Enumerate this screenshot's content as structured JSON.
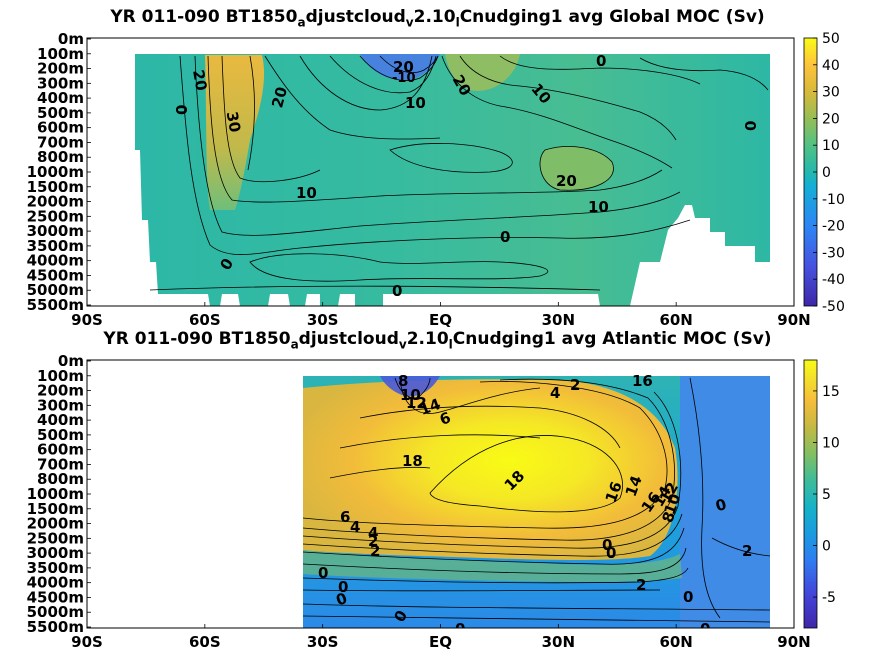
{
  "chart_data": [
    {
      "type": "heatmap",
      "title": {
        "prefix": "YR 011-090 BT1850",
        "sub1": "a",
        "mid1": "djustcloud",
        "sub2": "v",
        "mid2": "2.10",
        "sub3": "l",
        "suffix": "Cnudging1 avg  Global MOC (Sv)"
      },
      "x_ticks": [
        "90S",
        "60S",
        "30S",
        "EQ",
        "30N",
        "60N",
        "90N"
      ],
      "y_ticks": [
        "0m",
        "100m",
        "200m",
        "300m",
        "400m",
        "500m",
        "600m",
        "700m",
        "800m",
        "1000m",
        "1500m",
        "2000m",
        "2500m",
        "3000m",
        "3500m",
        "4000m",
        "4500m",
        "5000m",
        "5500m"
      ],
      "xlim": [
        -90,
        90
      ],
      "colorbar": {
        "ticks": [
          "50",
          "40",
          "30",
          "20",
          "10",
          "0",
          "-10",
          "-20",
          "-30",
          "-40",
          "-50"
        ],
        "range": [
          -50,
          50
        ]
      },
      "contour_labels": [
        "20",
        "-10",
        "20",
        "10",
        "20",
        "0",
        "0",
        "30",
        "20",
        "10",
        "10",
        "0",
        "20",
        "10",
        "0",
        "0",
        "0"
      ]
    },
    {
      "type": "heatmap",
      "title": {
        "prefix": "YR 011-090 BT1850",
        "sub1": "a",
        "mid1": "djustcloud",
        "sub2": "v",
        "mid2": "2.10",
        "sub3": "l",
        "suffix": "Cnudging1 avg  Atlantic MOC (Sv)"
      },
      "x_ticks": [
        "90S",
        "60S",
        "30S",
        "EQ",
        "30N",
        "60N",
        "90N"
      ],
      "y_ticks": [
        "0m",
        "100m",
        "200m",
        "300m",
        "400m",
        "500m",
        "600m",
        "700m",
        "800m",
        "1000m",
        "1500m",
        "2000m",
        "2500m",
        "3000m",
        "3500m",
        "4000m",
        "4500m",
        "5000m",
        "5500m"
      ],
      "xlim": [
        -90,
        90
      ],
      "colorbar": {
        "ticks": [
          "15",
          "10",
          "5",
          "0",
          "-5"
        ],
        "range": [
          -8,
          18
        ]
      },
      "contour_labels": [
        "8",
        "10",
        "12",
        "14",
        "6",
        "4",
        "2",
        "16",
        "18",
        "18",
        "16",
        "14",
        "16",
        "14",
        "12",
        "10",
        "8",
        "6",
        "4",
        "4",
        "2",
        "2",
        "0",
        "0",
        "0",
        "0",
        "2",
        "0",
        "0"
      ]
    }
  ]
}
